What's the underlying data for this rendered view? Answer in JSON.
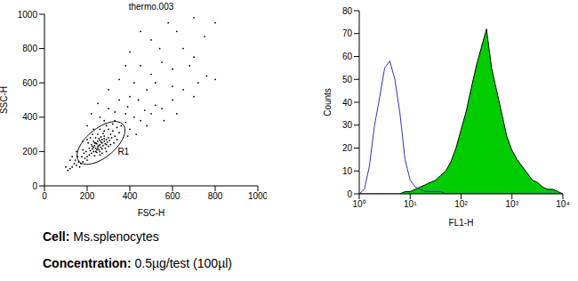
{
  "chart_data": [
    {
      "type": "scatter",
      "title": "thermo.003",
      "x_label": "FSC-H",
      "y_label": "SSC-H",
      "xlim": [
        0,
        1000
      ],
      "ylim": [
        0,
        1000
      ],
      "xticks": [
        0,
        200,
        400,
        600,
        800,
        1000
      ],
      "yticks": [
        0,
        200,
        400,
        600,
        800,
        1000
      ],
      "color": "#000000",
      "marker": "dot",
      "points": [
        [
          250,
          230
        ],
        [
          260,
          240
        ],
        [
          240,
          220
        ],
        [
          270,
          250
        ],
        [
          255,
          210
        ],
        [
          230,
          200
        ],
        [
          280,
          260
        ],
        [
          245,
          245
        ],
        [
          265,
          225
        ],
        [
          235,
          235
        ],
        [
          290,
          270
        ],
        [
          220,
          190
        ],
        [
          275,
          235
        ],
        [
          250,
          260
        ],
        [
          260,
          200
        ],
        [
          240,
          250
        ],
        [
          285,
          245
        ],
        [
          225,
          215
        ],
        [
          300,
          280
        ],
        [
          210,
          180
        ],
        [
          255,
          275
        ],
        [
          270,
          215
        ],
        [
          230,
          260
        ],
        [
          295,
          255
        ],
        [
          245,
          195
        ],
        [
          265,
          285
        ],
        [
          215,
          205
        ],
        [
          280,
          290
        ],
        [
          235,
          175
        ],
        [
          305,
          265
        ],
        [
          250,
          300
        ],
        [
          260,
          180
        ],
        [
          220,
          240
        ],
        [
          310,
          300
        ],
        [
          240,
          280
        ],
        [
          200,
          170
        ],
        [
          275,
          305
        ],
        [
          285,
          220
        ],
        [
          230,
          225
        ],
        [
          265,
          255
        ],
        [
          255,
          235
        ],
        [
          245,
          210
        ],
        [
          270,
          270
        ],
        [
          235,
          250
        ],
        [
          250,
          220
        ],
        [
          260,
          265
        ],
        [
          225,
          230
        ],
        [
          290,
          240
        ],
        [
          240,
          200
        ],
        [
          280,
          275
        ],
        [
          320,
          320
        ],
        [
          330,
          290
        ],
        [
          200,
          150
        ],
        [
          190,
          160
        ],
        [
          210,
          220
        ],
        [
          180,
          140
        ],
        [
          340,
          340
        ],
        [
          350,
          310
        ],
        [
          170,
          130
        ],
        [
          320,
          360
        ],
        [
          300,
          330
        ],
        [
          195,
          200
        ],
        [
          205,
          250
        ],
        [
          215,
          280
        ],
        [
          185,
          190
        ],
        [
          360,
          350
        ],
        [
          330,
          380
        ],
        [
          310,
          240
        ],
        [
          340,
          270
        ],
        [
          175,
          170
        ],
        [
          160,
          140
        ],
        [
          150,
          120
        ],
        [
          140,
          130
        ],
        [
          165,
          110
        ],
        [
          130,
          110
        ],
        [
          120,
          100
        ],
        [
          110,
          90
        ],
        [
          145,
          150
        ],
        [
          155,
          170
        ],
        [
          180,
          210
        ],
        [
          200,
          270
        ],
        [
          225,
          300
        ],
        [
          260,
          330
        ],
        [
          290,
          350
        ],
        [
          280,
          320
        ],
        [
          300,
          230
        ],
        [
          315,
          280
        ],
        [
          325,
          250
        ],
        [
          270,
          190
        ],
        [
          290,
          200
        ],
        [
          380,
          370
        ],
        [
          400,
          330
        ],
        [
          420,
          400
        ],
        [
          380,
          420
        ],
        [
          450,
          380
        ],
        [
          470,
          440
        ],
        [
          500,
          420
        ],
        [
          520,
          470
        ],
        [
          480,
          350
        ],
        [
          550,
          450
        ],
        [
          600,
          500
        ],
        [
          620,
          420
        ],
        [
          650,
          560
        ],
        [
          700,
          520
        ],
        [
          720,
          600
        ],
        [
          760,
          640
        ],
        [
          800,
          620
        ],
        [
          560,
          380
        ],
        [
          430,
          300
        ],
        [
          390,
          290
        ],
        [
          300,
          450
        ],
        [
          350,
          500
        ],
        [
          400,
          520
        ],
        [
          250,
          480
        ],
        [
          420,
          600
        ],
        [
          500,
          650
        ],
        [
          450,
          700
        ],
        [
          550,
          720
        ],
        [
          600,
          680
        ],
        [
          350,
          620
        ],
        [
          300,
          560
        ],
        [
          700,
          750
        ],
        [
          650,
          800
        ],
        [
          500,
          850
        ],
        [
          400,
          780
        ],
        [
          580,
          950
        ],
        [
          620,
          900
        ],
        [
          750,
          870
        ],
        [
          800,
          950
        ],
        [
          700,
          980
        ],
        [
          450,
          900
        ],
        [
          380,
          700
        ],
        [
          260,
          400
        ],
        [
          200,
          350
        ],
        [
          220,
          420
        ],
        [
          480,
          560
        ],
        [
          520,
          600
        ],
        [
          600,
          580
        ],
        [
          680,
          700
        ],
        [
          540,
          800
        ],
        [
          230,
          330
        ],
        [
          180,
          260
        ],
        [
          150,
          200
        ],
        [
          120,
          150
        ],
        [
          100,
          110
        ],
        [
          130,
          170
        ],
        [
          390,
          460
        ],
        [
          330,
          430
        ],
        [
          280,
          380
        ],
        [
          440,
          500
        ]
      ],
      "gate": {
        "label": "R1",
        "center": [
          265,
          250
        ],
        "semi_axes": [
          150,
          75
        ]
      }
    },
    {
      "type": "histogram",
      "x_label": "FL1-H",
      "y_label": "Counts",
      "log": "x",
      "xlim": [
        1,
        10000
      ],
      "ylim": [
        0,
        80
      ],
      "xticks": [
        {
          "value": 1,
          "label": "10⁰"
        },
        {
          "value": 10,
          "label": "10¹"
        },
        {
          "value": 100,
          "label": "10²"
        },
        {
          "value": 1000,
          "label": "10³"
        },
        {
          "value": 10000,
          "label": "10⁴"
        }
      ],
      "yticks": [
        0,
        10,
        20,
        30,
        40,
        50,
        60,
        70,
        80
      ],
      "x": [
        1,
        1.26,
        1.58,
        2,
        2.51,
        3.16,
        3.98,
        5.01,
        6.31,
        7.94,
        10,
        12.6,
        15.8,
        20,
        25.1,
        31.6,
        39.8,
        50.1,
        63.1,
        79.4,
        100,
        126,
        158,
        200,
        251,
        316,
        398,
        501,
        631,
        794,
        1000,
        1260,
        1580,
        2000,
        2510,
        3160,
        3980,
        5010,
        6310,
        7940,
        10000
      ],
      "series": [
        {
          "type": "area",
          "color": "#00cc00",
          "values": [
            0,
            0,
            0,
            0,
            0,
            0,
            0,
            0,
            0,
            1,
            1,
            2,
            3,
            4,
            5,
            6,
            8,
            10,
            14,
            20,
            28,
            36,
            46,
            56,
            64,
            72,
            55,
            45,
            35,
            25,
            19,
            15,
            12,
            9,
            6,
            5,
            3,
            2,
            2,
            1,
            0
          ]
        },
        {
          "type": "line",
          "color": "#3333bb",
          "values": [
            0,
            2,
            12,
            30,
            42,
            55,
            58,
            50,
            35,
            15,
            6,
            3,
            2,
            1,
            1,
            1,
            1,
            0,
            0,
            0,
            0,
            0,
            0,
            0,
            0,
            0,
            0,
            0,
            0,
            0,
            0,
            0,
            0,
            0,
            0,
            0,
            0,
            0,
            0,
            0,
            0
          ]
        }
      ]
    }
  ],
  "captions": [
    {
      "label": "Cell:",
      "text": "Ms.splenocytes"
    },
    {
      "label": "Concentration:",
      "text": "0.5µg/test (100µl)"
    }
  ]
}
